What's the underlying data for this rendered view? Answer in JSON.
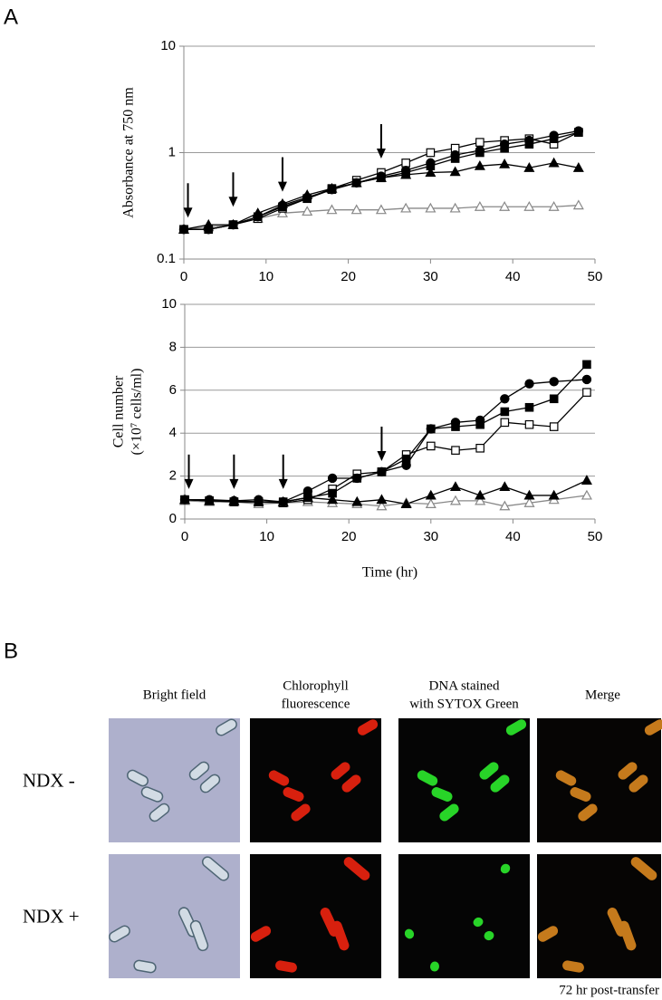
{
  "panel_labels": {
    "a": "A",
    "b": "B"
  },
  "chart_data": [
    {
      "type": "line",
      "log_y": true,
      "ylabel": "Absorbance at 750 nm",
      "x": [
        0,
        3,
        6,
        9,
        12,
        15,
        18,
        21,
        24,
        27,
        30,
        33,
        36,
        39,
        42,
        45,
        48
      ],
      "xlim": [
        0,
        50
      ],
      "xticks": [
        0,
        10,
        20,
        30,
        40,
        50
      ],
      "ylim": [
        0.1,
        10
      ],
      "yticks": [
        0.1,
        1,
        10
      ],
      "grid": true,
      "series": [
        {
          "marker": "triangle",
          "filled": false,
          "color": "#888888",
          "values": [
            0.19,
            0.2,
            0.21,
            0.24,
            0.27,
            0.28,
            0.29,
            0.29,
            0.29,
            0.3,
            0.3,
            0.3,
            0.31,
            0.31,
            0.31,
            0.31,
            0.32
          ]
        },
        {
          "marker": "triangle",
          "filled": true,
          "color": "#000000",
          "values": [
            0.19,
            0.21,
            0.21,
            0.27,
            0.33,
            0.4,
            0.46,
            0.52,
            0.58,
            0.62,
            0.65,
            0.66,
            0.75,
            0.78,
            0.72,
            0.8,
            0.72
          ]
        },
        {
          "marker": "square",
          "filled": false,
          "color": "#000000",
          "values": [
            0.19,
            0.19,
            0.21,
            0.24,
            0.3,
            0.37,
            0.46,
            0.55,
            0.65,
            0.8,
            1.0,
            1.1,
            1.25,
            1.3,
            1.35,
            1.2,
            1.55
          ]
        },
        {
          "marker": "square",
          "filled": true,
          "color": "#000000",
          "values": [
            0.19,
            0.19,
            0.21,
            0.25,
            0.31,
            0.37,
            0.45,
            0.52,
            0.58,
            0.65,
            0.75,
            0.88,
            1.0,
            1.1,
            1.2,
            1.35,
            1.55
          ]
        },
        {
          "marker": "circle",
          "filled": true,
          "color": "#000000",
          "values": [
            0.19,
            0.19,
            0.21,
            0.25,
            0.32,
            0.38,
            0.45,
            0.52,
            0.6,
            0.68,
            0.8,
            0.95,
            1.05,
            1.2,
            1.3,
            1.45,
            1.6
          ]
        }
      ],
      "arrows": [
        {
          "x": 0.5,
          "y": 0.245
        },
        {
          "x": 6,
          "y": 0.31
        },
        {
          "x": 12,
          "y": 0.43
        },
        {
          "x": 24,
          "y": 0.88
        }
      ]
    },
    {
      "type": "line",
      "log_y": false,
      "ylabel": "Cell number",
      "ylabel2": "(×10⁷ cells/ml)",
      "xlabel": "Time (hr)",
      "x": [
        0,
        3,
        6,
        9,
        12,
        15,
        18,
        21,
        24,
        27,
        30,
        33,
        36,
        39,
        42,
        45,
        49
      ],
      "xlim": [
        0,
        50
      ],
      "xticks": [
        0,
        10,
        20,
        30,
        40,
        50
      ],
      "ylim": [
        0,
        10
      ],
      "yticks": [
        0,
        2,
        4,
        6,
        8,
        10
      ],
      "grid": true,
      "series": [
        {
          "marker": "triangle",
          "filled": false,
          "color": "#888888",
          "values": [
            0.85,
            0.8,
            0.8,
            0.7,
            0.75,
            0.8,
            0.75,
            0.7,
            0.6,
            0.75,
            0.7,
            0.85,
            0.85,
            0.6,
            0.75,
            0.9,
            1.1
          ]
        },
        {
          "marker": "triangle",
          "filled": true,
          "color": "#000000",
          "values": [
            0.9,
            0.85,
            0.85,
            0.8,
            0.8,
            1.0,
            0.9,
            0.8,
            0.9,
            0.7,
            1.1,
            1.5,
            1.1,
            1.5,
            1.1,
            1.1,
            1.8
          ]
        },
        {
          "marker": "square",
          "filled": false,
          "color": "#000000",
          "values": [
            0.9,
            0.85,
            0.8,
            0.8,
            0.75,
            0.9,
            1.4,
            2.1,
            2.2,
            3.0,
            3.4,
            3.2,
            3.3,
            4.5,
            4.4,
            4.3,
            5.9
          ]
        },
        {
          "marker": "square",
          "filled": true,
          "color": "#000000",
          "values": [
            0.9,
            0.85,
            0.8,
            0.8,
            0.8,
            1.0,
            1.2,
            1.9,
            2.2,
            2.8,
            4.2,
            4.3,
            4.4,
            5.0,
            5.2,
            5.6,
            7.2
          ]
        },
        {
          "marker": "circle",
          "filled": true,
          "color": "#000000",
          "values": [
            0.9,
            0.9,
            0.85,
            0.9,
            0.8,
            1.3,
            1.9,
            1.9,
            2.2,
            2.5,
            4.2,
            4.5,
            4.6,
            5.6,
            6.3,
            6.4,
            6.5
          ]
        }
      ],
      "arrows": [
        {
          "x": 0.5,
          "y": 1.4
        },
        {
          "x": 6,
          "y": 1.4
        },
        {
          "x": 12,
          "y": 1.4
        },
        {
          "x": 24,
          "y": 2.7
        }
      ]
    }
  ],
  "microscopy": {
    "columns": [
      [
        "Bright  field"
      ],
      [
        "Chlorophyll",
        "fluorescence"
      ],
      [
        "DNA stained",
        "with SYTOX Green"
      ],
      [
        "Merge"
      ]
    ],
    "rows": [
      "NDX -",
      "NDX +"
    ],
    "note": "72 hr post-transfer"
  }
}
